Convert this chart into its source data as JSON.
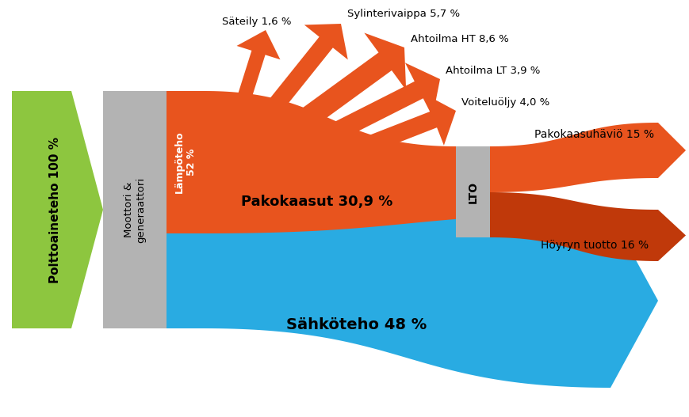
{
  "bg_color": "#ffffff",
  "green_arrow": {
    "label": "Polttoaineteho 100 %",
    "color": "#8dc63f"
  },
  "gray_color": "#b3b3b3",
  "orange_color": "#e8541e",
  "dark_orange_color": "#c0390a",
  "blue_color": "#29abe2",
  "labels": {
    "moottori": "Moottori &\ngeneraattori",
    "lampoteho": "Lämpöteho\n52 %",
    "lto": "LTO",
    "pakokaasut": "Pakokaasut 30,9 %",
    "sahkoteho": "Sähköteho 48 %",
    "sateily": "Säteily 1,6 %",
    "sylinterivaippa": "Sylinterivaippa 5,7 %",
    "ahtoilma_ht": "Ahtoilma HT 8,6 %",
    "ahtoilma_lt": "Ahtoilma LT 3,9 %",
    "voiteluoljy": "Voiteluöljy 4,0 %",
    "pakokaasuhaviö": "Pakokaasuhäviö 15 %",
    "hoyryn_tuotto": "Höyryn tuotto 16 %"
  }
}
